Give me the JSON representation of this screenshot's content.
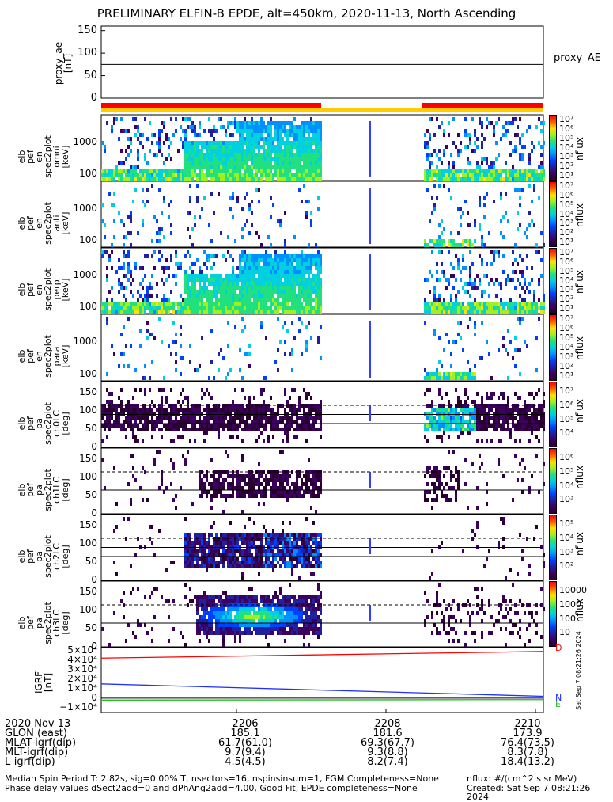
{
  "title": "PRELIMINARY ELFIN-B EPDE, alt=450km, 2020-11-13, North Ascending",
  "colors": {
    "red": "#ff0000",
    "yellow": "#ffcc00",
    "blue": "#2030ff",
    "green": "#20c020"
  },
  "proxy_panel": {
    "ylabel": "proxy_ae\n[nT]",
    "ticks": [
      "150",
      "100",
      "50",
      "0"
    ],
    "label": "proxy_AE",
    "level": 75
  },
  "spec_panels": [
    {
      "ylabel": "elb\npef\nen\nspec2plot\nomni\n[keV]",
      "ticks": [
        "1000",
        "100"
      ],
      "cbar_ticks": [
        "10⁷",
        "10⁶",
        "10⁵",
        "10⁴",
        "10³",
        "10²",
        "10¹"
      ],
      "unit": "nflux"
    },
    {
      "ylabel": "elb\npef\nen\nspec2plot\nanti\n[keV]",
      "ticks": [
        "1000",
        "100"
      ],
      "cbar_ticks": [
        "10⁷",
        "10⁶",
        "10⁵",
        "10⁴",
        "10³",
        "10²",
        "10¹"
      ],
      "unit": "nflux"
    },
    {
      "ylabel": "elb\npef\nen\nspec2plot\nperp\n[keV]",
      "ticks": [
        "1000",
        "100"
      ],
      "cbar_ticks": [
        "10⁷",
        "10⁶",
        "10⁵",
        "10⁴",
        "10³",
        "10²",
        "10¹"
      ],
      "unit": "nflux"
    },
    {
      "ylabel": "elb\npef\nen\nspec2plot\npara\n[keV]",
      "ticks": [
        "1000",
        "100"
      ],
      "cbar_ticks": [
        "10⁷",
        "10⁶",
        "10⁵",
        "10⁴",
        "10³",
        "10²",
        "10¹"
      ],
      "unit": "nflux"
    }
  ],
  "pa_panels": [
    {
      "ylabel": "elb\npef\npa\nspec2plot\nch0LC\n[deg]",
      "ticks": [
        "150",
        "100",
        "50",
        "0"
      ],
      "cbar_ticks": [
        "10⁷",
        "10⁶",
        "10⁵",
        "10⁴"
      ],
      "unit": "nflux"
    },
    {
      "ylabel": "elb\npef\npa\nspec2plot\nch1LC\n[deg]",
      "ticks": [
        "150",
        "100",
        "50",
        "0"
      ],
      "cbar_ticks": [
        "10⁶",
        "10⁵",
        "10⁴",
        "10³"
      ],
      "unit": "nflux"
    },
    {
      "ylabel": "elb\npef\npa\nspec2plot\nch2LC\n[deg]",
      "ticks": [
        "150",
        "100",
        "50",
        "0"
      ],
      "cbar_ticks": [
        "10⁵",
        "10⁴",
        "10³",
        "10²"
      ],
      "unit": "nflux"
    },
    {
      "ylabel": "elb\npef\npa\nspec2plot\nch3LC\n[deg]",
      "ticks": [
        "150",
        "100",
        "50",
        "0"
      ],
      "cbar_ticks": [
        "10000",
        "1000",
        "100",
        "10"
      ],
      "unit": "nflux"
    }
  ],
  "igrf_panel": {
    "ylabel": "IGRF\n[nT]",
    "ticks": [
      "5×10⁴",
      "4×10⁴",
      "3×10⁴",
      "2×10⁴",
      "1×10⁴",
      "0",
      "−1×10⁴"
    ],
    "legend": [
      "D",
      "N",
      "E"
    ],
    "stamp": "Sat Sep  7 08:21:26 2024"
  },
  "bottom_rows": [
    {
      "label": "2020 Nov 13",
      "vals": [
        "2206",
        "2208",
        "2210"
      ]
    },
    {
      "label": "GLON (east)",
      "vals": [
        "185.1",
        "181.6",
        "173.9"
      ]
    },
    {
      "label": "MLAT-igrf(dip)",
      "vals": [
        "61.7(61.0)",
        "69.3(67.7)",
        "76.4(73.5)"
      ]
    },
    {
      "label": "MLT-igrf(dip)",
      "vals": [
        "9.7(9.4)",
        "9.3(8.8)",
        "8.3(7.8)"
      ]
    },
    {
      "label": "L-igrf(dip)",
      "vals": [
        "4.5(4.5)",
        "8.2(7.4)",
        "18.4(13.2)"
      ]
    }
  ],
  "footer": {
    "line1_left": "Median Spin Period T: 2.82s, sig=0.00% T, nsectors=16, nspinsinsum=1, FGM Completeness=None",
    "line2_left": "Phase delay values dSect2add=0 and dPhAng2add=4.00, Good Fit, EPDE completeness=None",
    "line1_right": "nflux: #/(cm^2 s sr MeV)",
    "line2_right": "Created: Sat Sep  7 08:21:26 2024"
  }
}
